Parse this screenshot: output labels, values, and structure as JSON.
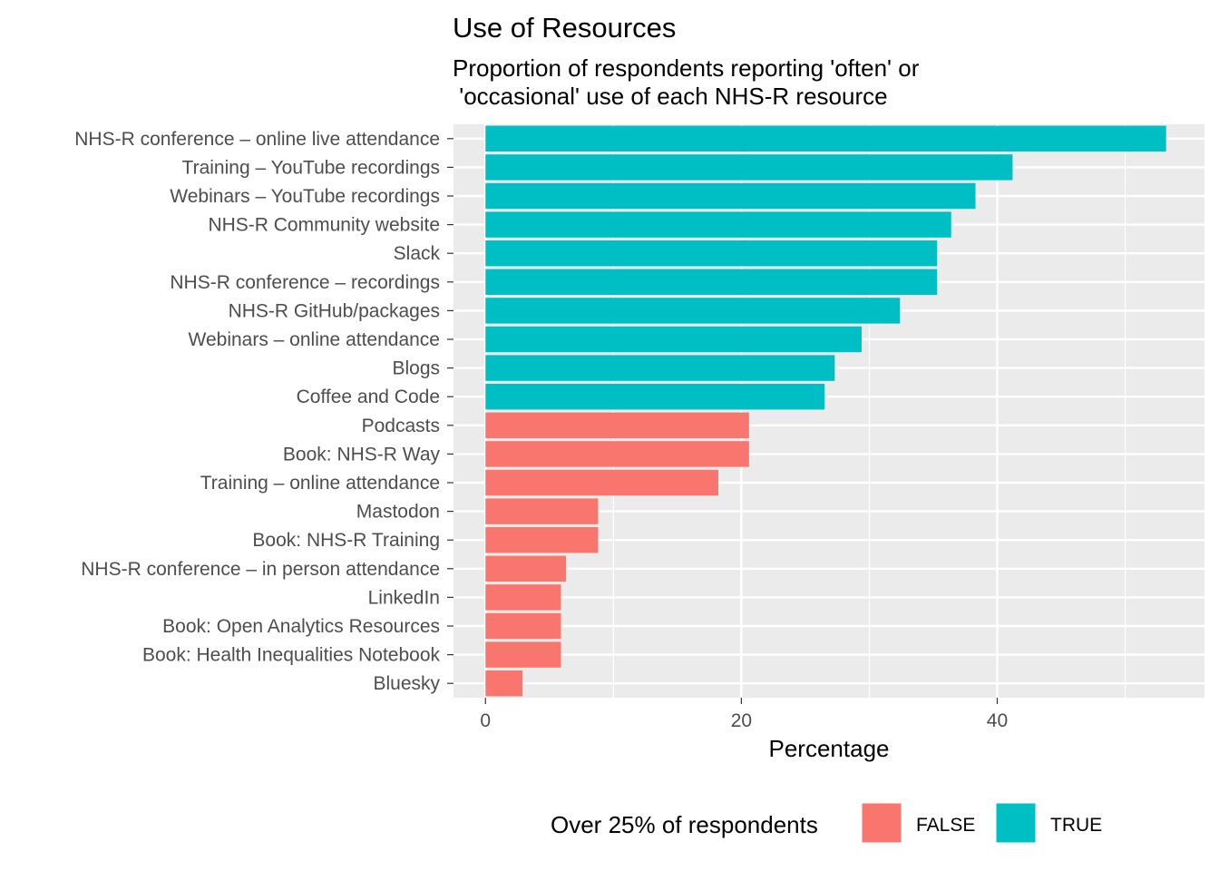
{
  "chart_data": {
    "type": "bar",
    "orientation": "horizontal",
    "title": "Use of Resources",
    "subtitle_lines": [
      "Proportion of respondents reporting 'often' or",
      " 'occasional' use of each NHS-R resource"
    ],
    "xlabel": "Percentage",
    "ylabel": "",
    "xlim": [
      -2.5,
      56.2
    ],
    "xticks": [
      0,
      20,
      40
    ],
    "grid": true,
    "categories": [
      "NHS-R conference – online live attendance",
      "Training – YouTube recordings",
      "Webinars – YouTube recordings",
      "NHS-R Community website",
      "Slack",
      "NHS-R conference – recordings",
      "NHS-R GitHub/packages",
      "Webinars – online attendance",
      "Blogs",
      "Coffee and Code ",
      "Podcasts",
      "Book: NHS-R Way ",
      "Training – online attendance",
      "Mastodon",
      "Book: NHS-R Training",
      "NHS-R conference – in person attendance",
      "LinkedIn",
      "Book: Open Analytics Resources",
      "Book: Health Inequalities Notebook",
      "Bluesky"
    ],
    "values": [
      53.2,
      41.2,
      38.3,
      36.4,
      35.3,
      35.3,
      32.4,
      29.4,
      27.3,
      26.5,
      20.6,
      20.6,
      18.2,
      8.8,
      8.8,
      6.3,
      5.9,
      5.9,
      5.9,
      2.9
    ],
    "over_25": [
      true,
      true,
      true,
      true,
      true,
      true,
      true,
      true,
      true,
      true,
      false,
      false,
      false,
      false,
      false,
      false,
      false,
      false,
      false,
      false
    ],
    "legend": {
      "title": "Over 25% of respondents",
      "position": "bottom",
      "entries": [
        {
          "label": "FALSE",
          "color": "#F8766D"
        },
        {
          "label": "TRUE",
          "color": "#00BFC4"
        }
      ]
    },
    "colors": {
      "panel": "#EBEBEB",
      "grid": "#FFFFFF",
      "tick_text": "#4D4D4D"
    }
  }
}
